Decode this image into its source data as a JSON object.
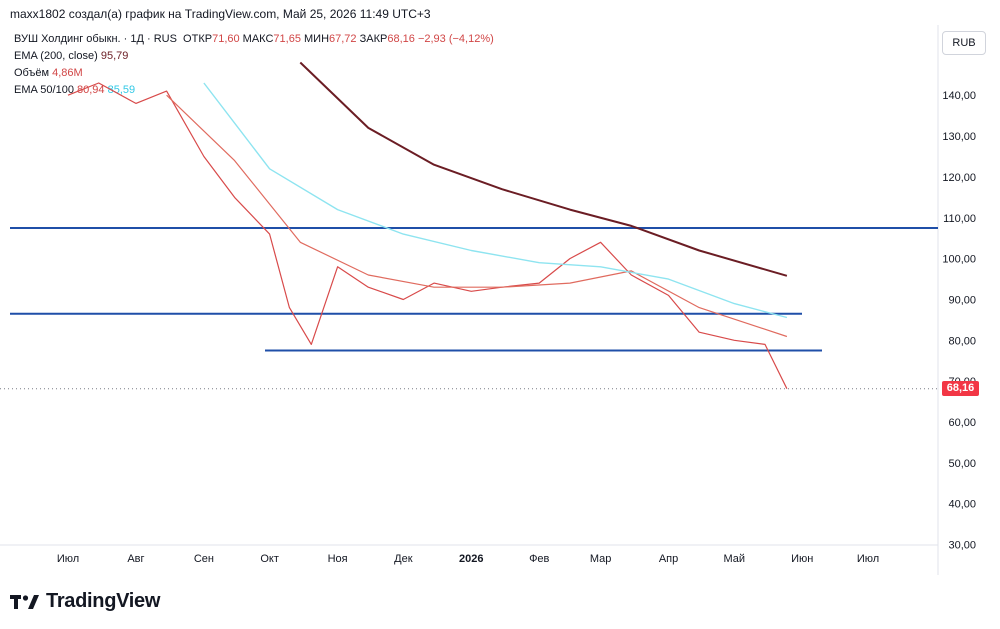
{
  "header": "maxx1802 создал(а) график на TradingView.com, Май 25, 2026 11:49 UTC+3",
  "legend": {
    "symbol": "ВУШ Холдинг обыкн. · 1Д · RUS",
    "open_label": "ОТКР",
    "open": "71,60",
    "high_label": "МАКС",
    "high": "71,65",
    "low_label": "МИН",
    "low": "67,72",
    "close_label": "ЗАКР",
    "close": "68,16",
    "change": "−2,93 (−4,12%)",
    "ema200_label": "EMA (200, close)",
    "ema200": "95,79",
    "volume_label": "Объём",
    "volume": "4,86M",
    "ema50_100_label": "EMA 50/100",
    "ema50": "80,94",
    "ema100": "85,59"
  },
  "currency_button": "RUB",
  "last_price_tag": "68,16",
  "brand": "TradingView",
  "colors": {
    "up": "#22ab94",
    "down": "#f23645",
    "ema50": "#e06b5f",
    "ema100": "#8ee4f0",
    "ema200": "#6b1d24",
    "hline": "#1f4fa8"
  },
  "chart_data": {
    "type": "line",
    "title": "",
    "x_labels": [
      "Июл",
      "Авг",
      "Сен",
      "Окт",
      "Ноя",
      "Дек",
      "2026",
      "Фев",
      "Мар",
      "Апр",
      "Май",
      "Июн",
      "Июл"
    ],
    "y_ticks": [
      "140,00",
      "130,00",
      "120,00",
      "110,00",
      "100,00",
      "90,00",
      "80,00",
      "70,00",
      "60,00",
      "50,00",
      "40,00",
      "30,00"
    ],
    "ylim": [
      27,
      150
    ],
    "grid": false,
    "series": [
      {
        "name": "ВУШ Холдинг обыкн.",
        "x": [
          "2025-07-01",
          "2025-07-15",
          "2025-08-01",
          "2025-08-15",
          "2025-09-01",
          "2025-09-15",
          "2025-10-01",
          "2025-10-10",
          "2025-10-20",
          "2025-11-01",
          "2025-11-15",
          "2025-12-01",
          "2025-12-15",
          "2026-01-01",
          "2026-01-15",
          "2026-02-01",
          "2026-02-15",
          "2026-03-01",
          "2026-03-15",
          "2026-04-01",
          "2026-04-15",
          "2026-05-01",
          "2026-05-15",
          "2026-05-25"
        ],
        "values": [
          140,
          143,
          138,
          141,
          125,
          115,
          106,
          88,
          79,
          98,
          93,
          90,
          94,
          92,
          93,
          94,
          100,
          104,
          96,
          91,
          82,
          80,
          79,
          68.16
        ]
      },
      {
        "name": "EMA 50",
        "x": [
          "2025-08-15",
          "2025-09-15",
          "2025-10-15",
          "2025-11-15",
          "2025-12-15",
          "2026-01-15",
          "2026-02-15",
          "2026-03-15",
          "2026-04-15",
          "2026-05-25"
        ],
        "values": [
          140,
          124,
          104,
          96,
          93,
          93,
          94,
          97,
          88,
          80.94
        ]
      },
      {
        "name": "EMA 100",
        "x": [
          "2025-09-01",
          "2025-10-01",
          "2025-11-01",
          "2025-12-01",
          "2026-01-01",
          "2026-02-01",
          "2026-03-01",
          "2026-04-01",
          "2026-05-01",
          "2026-05-25"
        ],
        "values": [
          143,
          122,
          112,
          106,
          102,
          99,
          98,
          95,
          89,
          85.59
        ]
      },
      {
        "name": "EMA (200, close)",
        "x": [
          "2025-10-15",
          "2025-11-15",
          "2025-12-15",
          "2026-01-15",
          "2026-02-15",
          "2026-03-15",
          "2026-04-15",
          "2026-05-25"
        ],
        "values": [
          148,
          132,
          123,
          117,
          112,
          108,
          102,
          95.79
        ]
      }
    ],
    "hlines": [
      107.5,
      86.5,
      77.5
    ],
    "last_price": 68.16
  }
}
